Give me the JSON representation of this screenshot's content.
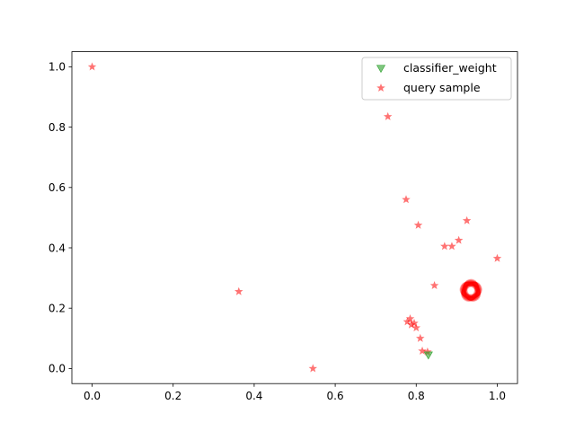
{
  "chart_data": {
    "type": "scatter",
    "title": "",
    "xlabel": "",
    "ylabel": "",
    "xlim": [
      -0.05,
      1.05
    ],
    "ylim": [
      -0.05,
      1.05
    ],
    "xticks": [
      "0.0",
      "0.2",
      "0.4",
      "0.6",
      "0.8",
      "1.0"
    ],
    "yticks": [
      "0.0",
      "0.2",
      "0.4",
      "0.6",
      "0.8",
      "1.0"
    ],
    "grid": false,
    "legend_position": "top-right",
    "series": [
      {
        "name": "classifier_weight",
        "marker": "triangle-down",
        "color": "#2ca02c",
        "points": [
          [
            0.83,
            0.045
          ]
        ]
      },
      {
        "name": "query sample",
        "marker": "star",
        "color": "#ff0000",
        "points": [
          [
            0.0,
            1.0
          ],
          [
            0.73,
            0.835
          ],
          [
            0.775,
            0.56
          ],
          [
            0.805,
            0.475
          ],
          [
            0.925,
            0.49
          ],
          [
            0.905,
            0.425
          ],
          [
            0.87,
            0.405
          ],
          [
            0.888,
            0.405
          ],
          [
            1.0,
            0.365
          ],
          [
            0.845,
            0.275
          ],
          [
            0.362,
            0.255
          ],
          [
            0.785,
            0.165
          ],
          [
            0.778,
            0.155
          ],
          [
            0.795,
            0.15
          ],
          [
            0.788,
            0.145
          ],
          [
            0.8,
            0.135
          ],
          [
            0.81,
            0.1
          ],
          [
            0.815,
            0.058
          ],
          [
            0.828,
            0.055
          ],
          [
            0.545,
            0.0
          ]
        ],
        "cluster": {
          "center": [
            0.935,
            0.258
          ],
          "radius": [
            0.018,
            0.025
          ],
          "count": 48
        }
      }
    ]
  }
}
